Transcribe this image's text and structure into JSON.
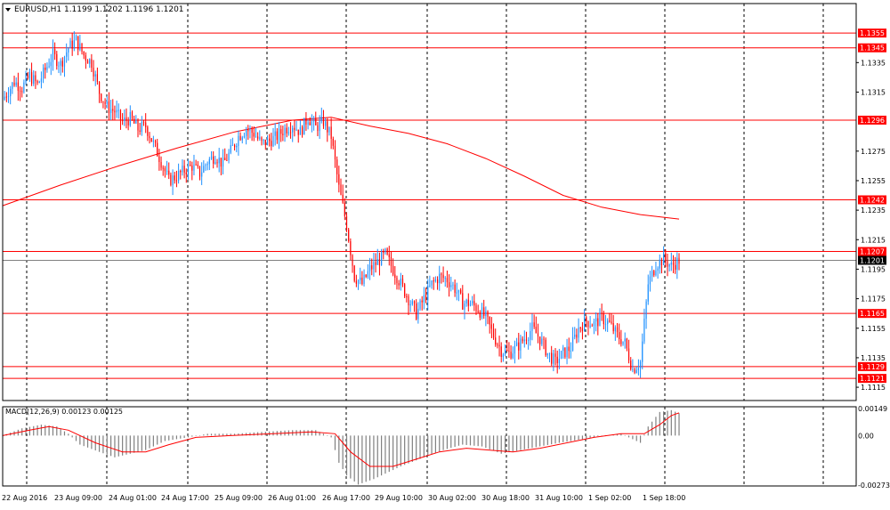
{
  "header": {
    "title": "EURUSD,H1  1.1199 1.1202 1.1196 1.1201"
  },
  "colors": {
    "bull": "#1e90ff",
    "bear": "#ff0000",
    "level_line": "#ff0000",
    "level_label_bg": "#ff0000",
    "current_label_bg": "#000000",
    "grid": "#000000",
    "macd_hist": "#808080",
    "macd_signal": "#ff0000",
    "moving_average": "#ff0000"
  },
  "chart_data": [
    {
      "type": "candlestick",
      "title": "EURUSD,H1",
      "quote": {
        "open": 1.1199,
        "high": 1.1202,
        "low": 1.1196,
        "close": 1.1201
      },
      "ylim": [
        1.1106,
        1.1375
      ],
      "y_ticks": [
        "1.1335",
        "1.1315",
        "1.1275",
        "1.1255",
        "1.1235",
        "1.1215",
        "1.1195",
        "1.1175",
        "1.1155",
        "1.1135",
        "1.1115"
      ],
      "x_ticks": [
        "22 Aug 2016",
        "23 Aug 09:00",
        "24 Aug 01:00",
        "24 Aug 17:00",
        "25 Aug 09:00",
        "26 Aug 01:00",
        "26 Aug 17:00",
        "29 Aug 10:00",
        "30 Aug 02:00",
        "30 Aug 18:00",
        "31 Aug 10:00",
        "1 Sep 02:00",
        "1 Sep 18:00"
      ],
      "levels": [
        {
          "value": 1.1355,
          "label": "1.1355"
        },
        {
          "value": 1.1345,
          "label": "1.1345"
        },
        {
          "value": 1.1296,
          "label": "1.1296"
        },
        {
          "value": 1.1242,
          "label": "1.1242"
        },
        {
          "value": 1.1207,
          "label": "1.1207"
        },
        {
          "value": 1.1165,
          "label": "1.1165"
        },
        {
          "value": 1.1129,
          "label": "1.1129"
        },
        {
          "value": 1.1121,
          "label": "1.1121"
        }
      ],
      "current_price": {
        "value": 1.1201,
        "label": "1.1201"
      },
      "close_path": [
        [
          0,
          1.131
        ],
        [
          6,
          1.1322
        ],
        [
          10,
          1.1318
        ],
        [
          14,
          1.1326
        ],
        [
          18,
          1.132
        ],
        [
          22,
          1.133
        ],
        [
          26,
          1.134
        ],
        [
          30,
          1.1334
        ],
        [
          34,
          1.1345
        ],
        [
          38,
          1.135
        ],
        [
          42,
          1.134
        ],
        [
          46,
          1.1335
        ],
        [
          50,
          1.1315
        ],
        [
          54,
          1.1305
        ],
        [
          58,
          1.1302
        ],
        [
          62,
          1.1295
        ],
        [
          66,
          1.1297
        ],
        [
          70,
          1.129
        ],
        [
          74,
          1.1292
        ],
        [
          78,
          1.128
        ],
        [
          82,
          1.1268
        ],
        [
          86,
          1.1255
        ],
        [
          90,
          1.1258
        ],
        [
          94,
          1.1262
        ],
        [
          98,
          1.1265
        ],
        [
          102,
          1.126
        ],
        [
          106,
          1.1268
        ],
        [
          110,
          1.1272
        ],
        [
          114,
          1.1266
        ],
        [
          118,
          1.1275
        ],
        [
          122,
          1.1285
        ],
        [
          126,
          1.129
        ],
        [
          130,
          1.1287
        ],
        [
          134,
          1.128
        ],
        [
          138,
          1.1282
        ],
        [
          142,
          1.1285
        ],
        [
          146,
          1.129
        ],
        [
          150,
          1.1293
        ],
        [
          154,
          1.1288
        ],
        [
          158,
          1.1298
        ],
        [
          162,
          1.1291
        ],
        [
          166,
          1.1295
        ],
        [
          170,
          1.1285
        ],
        [
          174,
          1.125
        ],
        [
          178,
          1.1225
        ],
        [
          182,
          1.119
        ],
        [
          186,
          1.1185
        ],
        [
          190,
          1.1195
        ],
        [
          194,
          1.12
        ],
        [
          198,
          1.1205
        ],
        [
          202,
          1.1195
        ],
        [
          206,
          1.1185
        ],
        [
          210,
          1.1175
        ],
        [
          214,
          1.1165
        ],
        [
          218,
          1.1175
        ],
        [
          222,
          1.1185
        ],
        [
          226,
          1.119
        ],
        [
          230,
          1.1188
        ],
        [
          234,
          1.1182
        ],
        [
          238,
          1.1172
        ],
        [
          242,
          1.1172
        ],
        [
          246,
          1.1168
        ],
        [
          250,
          1.1162
        ],
        [
          254,
          1.115
        ],
        [
          258,
          1.114
        ],
        [
          262,
          1.1138
        ],
        [
          266,
          1.1142
        ],
        [
          270,
          1.1148
        ],
        [
          274,
          1.1155
        ],
        [
          278,
          1.1148
        ],
        [
          282,
          1.1138
        ],
        [
          286,
          1.1132
        ],
        [
          290,
          1.1138
        ],
        [
          294,
          1.1142
        ],
        [
          298,
          1.1155
        ],
        [
          302,
          1.116
        ],
        [
          306,
          1.1158
        ],
        [
          310,
          1.1162
        ],
        [
          314,
          1.1158
        ],
        [
          318,
          1.115
        ],
        [
          322,
          1.1145
        ],
        [
          326,
          1.1127
        ],
        [
          330,
          1.1132
        ],
        [
          334,
          1.1185
        ],
        [
          338,
          1.1198
        ],
        [
          342,
          1.1202
        ],
        [
          346,
          1.1197
        ],
        [
          350,
          1.1201
        ]
      ],
      "moving_average": [
        [
          0,
          1.1238
        ],
        [
          30,
          1.1252
        ],
        [
          60,
          1.1265
        ],
        [
          90,
          1.1277
        ],
        [
          120,
          1.1288
        ],
        [
          150,
          1.1296
        ],
        [
          170,
          1.1298
        ],
        [
          190,
          1.1292
        ],
        [
          210,
          1.1287
        ],
        [
          230,
          1.128
        ],
        [
          250,
          1.127
        ],
        [
          270,
          1.1258
        ],
        [
          290,
          1.1245
        ],
        [
          310,
          1.1237
        ],
        [
          330,
          1.1232
        ],
        [
          350,
          1.1229
        ]
      ]
    },
    {
      "type": "bar",
      "title": "MACD(12,26,9) 0.00123 0.00125",
      "ylim": [
        -0.00273,
        0.00149
      ],
      "y_ticks": [
        "0.00149",
        "0.00",
        "-0.00273"
      ],
      "histogram_path": [
        [
          0,
          0
        ],
        [
          10,
          0.0004
        ],
        [
          20,
          0.0006
        ],
        [
          28,
          0.0005
        ],
        [
          34,
          0.0001
        ],
        [
          40,
          -0.0005
        ],
        [
          50,
          -0.0009
        ],
        [
          58,
          -0.0012
        ],
        [
          66,
          -0.001
        ],
        [
          74,
          -0.0008
        ],
        [
          84,
          -0.0003
        ],
        [
          96,
          -0.0001
        ],
        [
          106,
          0.0001
        ],
        [
          120,
          0.0001
        ],
        [
          134,
          0.0002
        ],
        [
          150,
          0.0003
        ],
        [
          162,
          0.0003
        ],
        [
          170,
          -0.0001
        ],
        [
          174,
          -0.0015
        ],
        [
          178,
          -0.0022
        ],
        [
          184,
          -0.0027
        ],
        [
          192,
          -0.0024
        ],
        [
          206,
          -0.0017
        ],
        [
          218,
          -0.0012
        ],
        [
          228,
          -0.0008
        ],
        [
          238,
          -0.0005
        ],
        [
          248,
          -0.0006
        ],
        [
          258,
          -0.001
        ],
        [
          268,
          -0.0008
        ],
        [
          278,
          -0.0006
        ],
        [
          288,
          -0.0004
        ],
        [
          300,
          -0.0002
        ],
        [
          310,
          0
        ],
        [
          320,
          0.0001
        ],
        [
          330,
          -0.0004
        ],
        [
          334,
          0.0005
        ],
        [
          340,
          0.0013
        ],
        [
          346,
          0.0014
        ],
        [
          350,
          0.00123
        ]
      ],
      "signal_path": [
        [
          0,
          0
        ],
        [
          14,
          0.0003
        ],
        [
          24,
          0.0005
        ],
        [
          34,
          0.0003
        ],
        [
          48,
          -0.0004
        ],
        [
          62,
          -0.0009
        ],
        [
          74,
          -0.0009
        ],
        [
          86,
          -0.0005
        ],
        [
          100,
          -0.0001
        ],
        [
          118,
          0
        ],
        [
          140,
          0.0001
        ],
        [
          160,
          0.0002
        ],
        [
          172,
          0.0001
        ],
        [
          180,
          -0.0009
        ],
        [
          190,
          -0.0017
        ],
        [
          202,
          -0.0017
        ],
        [
          214,
          -0.0013
        ],
        [
          226,
          -0.0009
        ],
        [
          240,
          -0.0007
        ],
        [
          252,
          -0.0008
        ],
        [
          264,
          -0.0009
        ],
        [
          278,
          -0.0007
        ],
        [
          292,
          -0.0004
        ],
        [
          306,
          -0.0001
        ],
        [
          320,
          0.0001
        ],
        [
          332,
          0.0001
        ],
        [
          340,
          0.0006
        ],
        [
          346,
          0.0011
        ],
        [
          350,
          0.00125
        ]
      ]
    }
  ]
}
